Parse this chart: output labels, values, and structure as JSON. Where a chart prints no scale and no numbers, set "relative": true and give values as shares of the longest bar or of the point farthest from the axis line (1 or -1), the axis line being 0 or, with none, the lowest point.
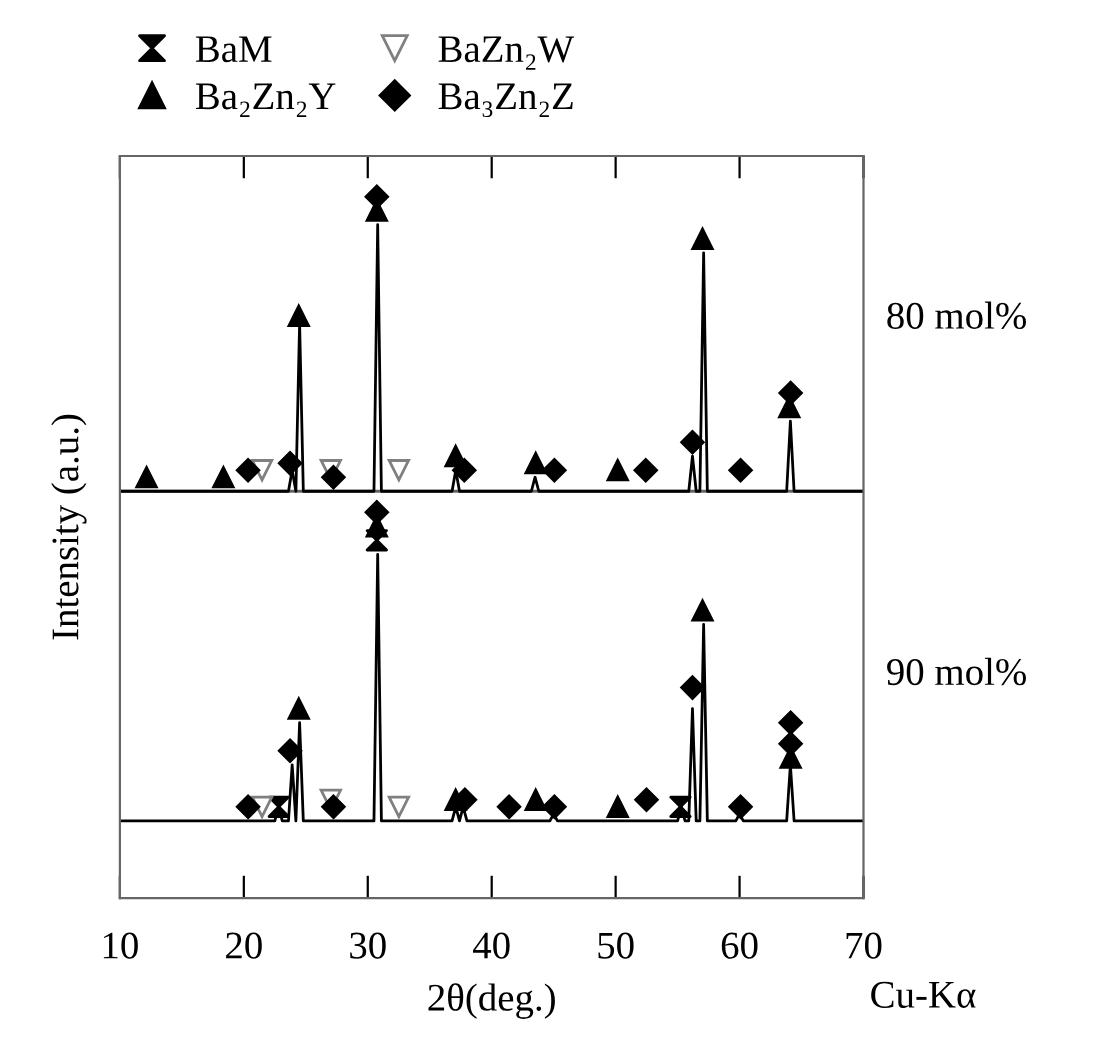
{
  "chart_data": {
    "type": "line",
    "relative": true,
    "ylabel": "Intensity (a.u.)",
    "xlabel": "2θ(deg.)",
    "annotations": [
      "80 mol%",
      "90 mol%",
      "Cu-Kα"
    ],
    "legend": "top",
    "tick_labels": "x",
    "xlim": [
      10,
      70
    ],
    "xticks": [
      10,
      20,
      30,
      40,
      50,
      60,
      70
    ],
    "ref_lines": [
      {
        "axis": "y",
        "value": 0.58,
        "color": "#666666"
      }
    ],
    "series": [
      {
        "color": "#000000",
        "x": [
          10,
          23.6,
          23.9,
          24.2,
          24.5,
          24.8,
          30.5,
          30.8,
          31.1,
          36.8,
          37.1,
          37.4,
          43.2,
          43.5,
          43.8,
          55.9,
          56.2,
          56.5,
          56.8,
          57.1,
          57.4,
          63.8,
          64.1,
          64.4,
          70
        ],
        "values": [
          0.58,
          0.58,
          0.61,
          0.58,
          0.82,
          0.58,
          0.58,
          0.96,
          0.58,
          0.58,
          0.61,
          0.58,
          0.58,
          0.6,
          0.58,
          0.58,
          0.63,
          0.58,
          0.58,
          0.92,
          0.58,
          0.58,
          0.68,
          0.58,
          0.58
        ]
      },
      {
        "color": "#000000",
        "x": [
          10,
          22.5,
          22.8,
          23.1,
          23.6,
          23.9,
          24.2,
          24.5,
          24.8,
          30.5,
          30.8,
          31.1,
          36.8,
          37.1,
          37.4,
          37.7,
          38.0,
          44.7,
          45.0,
          45.3,
          55.0,
          55.3,
          55.6,
          55.9,
          56.2,
          56.5,
          56.8,
          57.1,
          57.4,
          59.7,
          60.0,
          60.3,
          63.8,
          64.1,
          64.4,
          70
        ],
        "values": [
          0.11,
          0.11,
          0.13,
          0.11,
          0.11,
          0.19,
          0.11,
          0.25,
          0.11,
          0.11,
          0.49,
          0.11,
          0.11,
          0.13,
          0.11,
          0.13,
          0.11,
          0.11,
          0.12,
          0.11,
          0.11,
          0.13,
          0.11,
          0.11,
          0.27,
          0.11,
          0.11,
          0.39,
          0.11,
          0.11,
          0.12,
          0.11,
          0.11,
          0.19,
          0.11,
          0.11
        ]
      },
      {
        "name": "BaM",
        "type": "scatter",
        "color": "#000000",
        "x": [
          22.82,
          30.73,
          55.23
        ],
        "values": [
          0.13,
          0.51,
          0.13
        ]
      },
      {
        "name": "BaZn₂W",
        "type": "scatter",
        "color": "#808080",
        "x": [
          21.47,
          27.02,
          32.51,
          21.47,
          27.02,
          32.51
        ],
        "values": [
          0.61,
          0.61,
          0.61,
          0.13,
          0.14,
          0.13
        ]
      },
      {
        "name": "Ba₂Zn₂Y",
        "type": "scatter",
        "marker": "triangle",
        "color": "#000000",
        "x": [
          12.15,
          18.35,
          24.43,
          30.73,
          37.09,
          43.55,
          50.17,
          57.01,
          64.01,
          24.43,
          30.73,
          37.09,
          43.55,
          50.17,
          57.01,
          64.12
        ],
        "values": [
          0.6,
          0.6,
          0.83,
          0.98,
          0.63,
          0.62,
          0.61,
          0.94,
          0.7,
          0.27,
          0.53,
          0.14,
          0.14,
          0.13,
          0.41,
          0.2
        ]
      },
      {
        "name": "Ba₃Zn₂Z",
        "type": "scatter",
        "marker": "diamond",
        "color": "#000000",
        "x": [
          20.34,
          23.73,
          27.23,
          30.73,
          37.79,
          45.06,
          52.43,
          56.2,
          60.08,
          64.12,
          20.34,
          23.73,
          27.23,
          30.73,
          37.84,
          41.4,
          45.06,
          52.49,
          56.2,
          60.08,
          64.12,
          64.12
        ],
        "values": [
          0.61,
          0.62,
          0.6,
          1.0,
          0.61,
          0.61,
          0.61,
          0.65,
          0.61,
          0.72,
          0.13,
          0.21,
          0.13,
          0.55,
          0.14,
          0.13,
          0.13,
          0.14,
          0.3,
          0.13,
          0.25,
          0.22
        ]
      }
    ]
  }
}
